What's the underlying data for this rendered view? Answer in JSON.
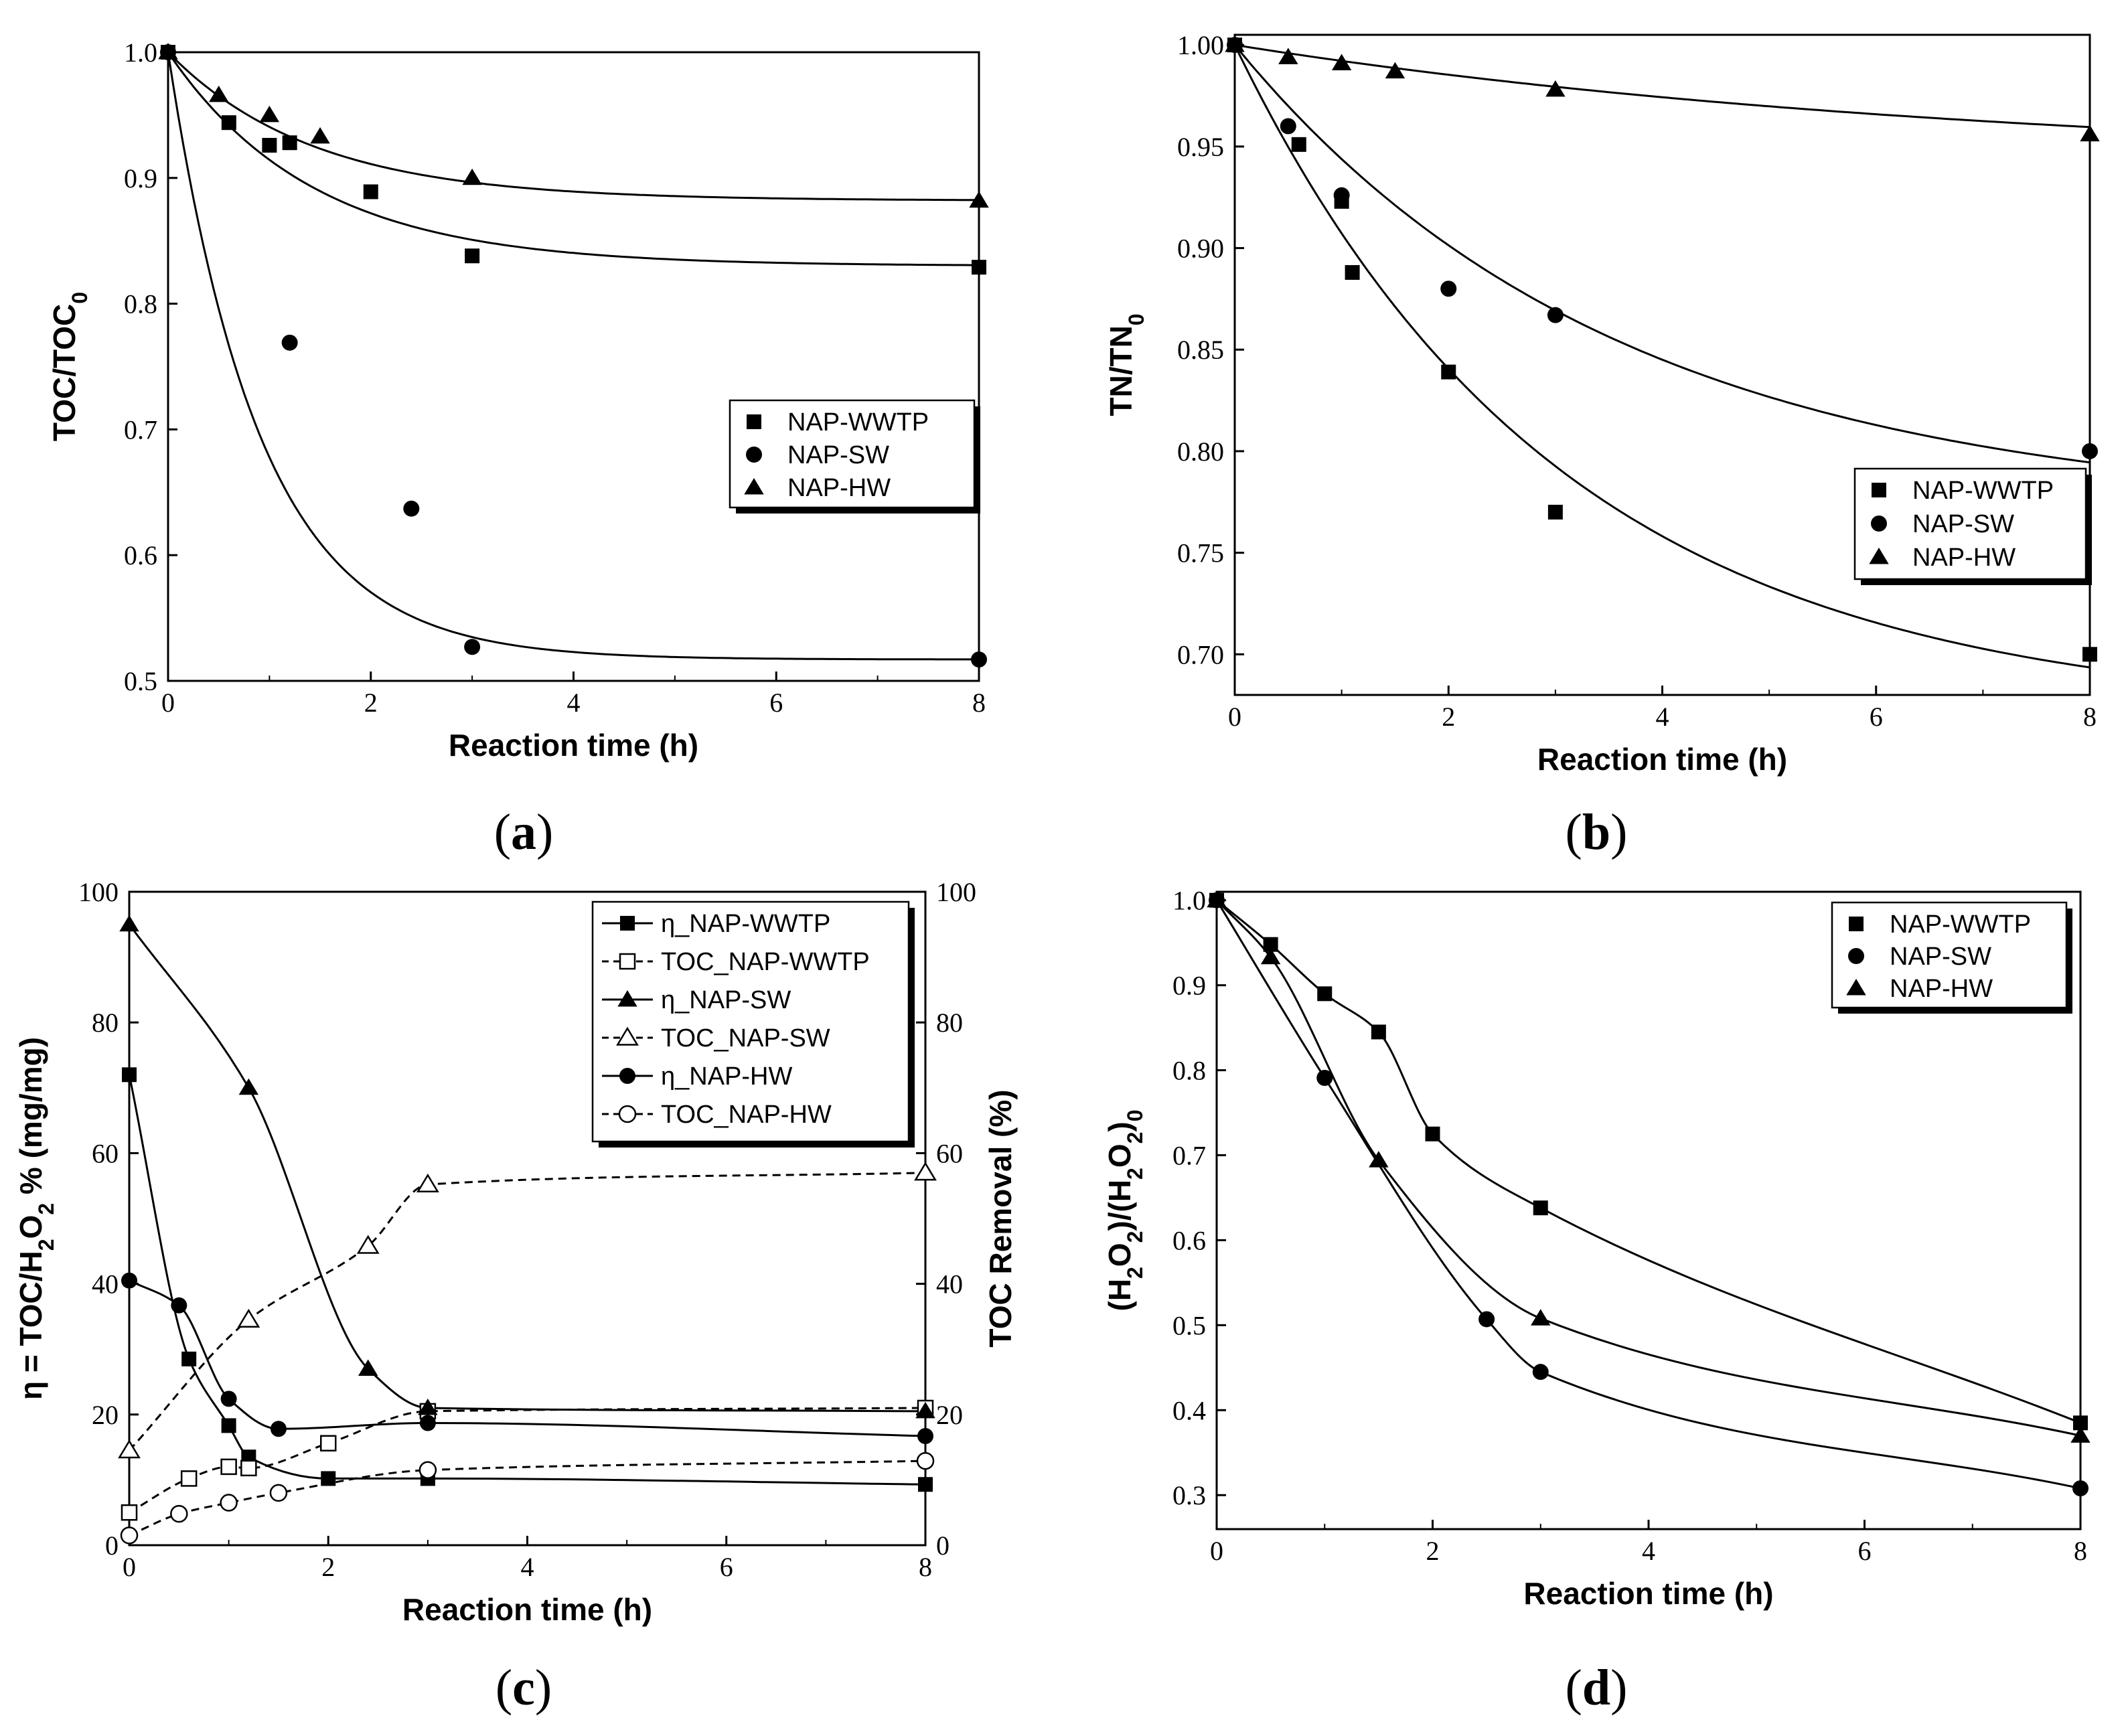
{
  "figure": {
    "panel_labels": [
      {
        "open": "(",
        "letter": "a",
        "close": ")"
      },
      {
        "open": "(",
        "letter": "b",
        "close": ")"
      },
      {
        "open": "(",
        "letter": "c",
        "close": ")"
      },
      {
        "open": "(",
        "letter": "d",
        "close": ")"
      }
    ]
  },
  "chart_data": [
    {
      "type": "scatter",
      "panel": "a",
      "xlabel": "Reaction time (h)",
      "ylabel": "TOC/TOC0",
      "xlim": [
        0,
        8
      ],
      "ylim": [
        0.5,
        1.0
      ],
      "xticks": [
        0,
        2,
        4,
        6,
        8
      ],
      "yticks": [
        0.5,
        0.6,
        0.7,
        0.8,
        0.9,
        1.0
      ],
      "ytick_labels": [
        "0.5",
        "0.6",
        "0.7",
        "0.8",
        "0.9",
        "1.0"
      ],
      "series": [
        {
          "name": "NAP-WWTP",
          "marker": "square",
          "x": [
            0,
            0.6,
            1.0,
            1.2,
            2.0,
            3.0,
            8.0
          ],
          "y": [
            1.0,
            0.944,
            0.926,
            0.928,
            0.889,
            0.838,
            0.829
          ],
          "fit": {
            "a": 0.83,
            "k": 0.7
          }
        },
        {
          "name": "NAP-SW",
          "marker": "circle",
          "x": [
            0,
            1.2,
            2.4,
            3.0,
            8.0
          ],
          "y": [
            1.0,
            0.769,
            0.637,
            0.527,
            0.517
          ],
          "fit": {
            "a": 0.517,
            "k": 1.1
          }
        },
        {
          "name": "NAP-HW",
          "marker": "triangle",
          "x": [
            0,
            0.5,
            1.0,
            1.5,
            3.0,
            8.0
          ],
          "y": [
            1.0,
            0.966,
            0.95,
            0.933,
            0.9,
            0.882
          ],
          "fit": {
            "a": 0.882,
            "k": 0.7
          }
        }
      ],
      "legend": [
        "NAP-WWTP",
        "NAP-SW",
        "NAP-HW"
      ],
      "legend_position": "center-right"
    },
    {
      "type": "scatter",
      "panel": "b",
      "xlabel": "Reaction time (h)",
      "ylabel": "TN/TN0",
      "xlim": [
        0,
        8
      ],
      "ylim": [
        0.68,
        1.005
      ],
      "xticks": [
        0,
        2,
        4,
        6,
        8
      ],
      "yticks": [
        0.7,
        0.75,
        0.8,
        0.85,
        0.9,
        0.95,
        1.0
      ],
      "ytick_labels": [
        "0.70",
        "0.75",
        "0.80",
        "0.85",
        "0.90",
        "0.95",
        "1.00"
      ],
      "series": [
        {
          "name": "NAP-WWTP",
          "marker": "square",
          "x": [
            0,
            0.6,
            1.0,
            1.1,
            2.0,
            3.0,
            8.0
          ],
          "y": [
            1.0,
            0.951,
            0.923,
            0.888,
            0.839,
            0.77,
            0.7
          ],
          "fit": {
            "a": 0.67,
            "k": 0.33
          }
        },
        {
          "name": "NAP-SW",
          "marker": "circle",
          "x": [
            0,
            0.5,
            1.0,
            2.0,
            3.0,
            8.0
          ],
          "y": [
            1.0,
            0.96,
            0.926,
            0.88,
            0.867,
            0.8
          ],
          "fit": {
            "a": 0.77,
            "k": 0.28
          }
        },
        {
          "name": "NAP-HW",
          "marker": "triangle",
          "x": [
            0,
            0.5,
            1.0,
            1.5,
            3.0,
            8.0
          ],
          "y": [
            1.0,
            0.994,
            0.991,
            0.987,
            0.978,
            0.956
          ],
          "fit": {
            "a": 0.94,
            "k": 0.14
          }
        }
      ],
      "legend": [
        "NAP-WWTP",
        "NAP-SW",
        "NAP-HW"
      ],
      "legend_position": "lower-right"
    },
    {
      "type": "scatter",
      "panel": "c",
      "xlabel": "Reaction time (h)",
      "ylabel": "η = TOC/H2O2 % (mg/mg)",
      "y2label": "TOC Removal (%)",
      "xlim": [
        0,
        8
      ],
      "ylim": [
        0,
        100
      ],
      "y2lim": [
        0,
        100
      ],
      "xticks": [
        0,
        2,
        4,
        6,
        8
      ],
      "yticks": [
        0,
        20,
        40,
        60,
        80,
        100
      ],
      "y2ticks": [
        0,
        20,
        40,
        60,
        80,
        100
      ],
      "series": [
        {
          "name": "η_NAP-WWTP",
          "marker": "square",
          "filled": true,
          "dashed": false,
          "x": [
            0,
            0.6,
            1.0,
            1.2,
            2.0,
            3.0,
            8.0
          ],
          "y": [
            72,
            28.5,
            18.3,
            13.5,
            10.2,
            10.2,
            9.3
          ]
        },
        {
          "name": "TOC_NAP-WWTP",
          "marker": "square",
          "filled": false,
          "dashed": true,
          "x": [
            0,
            0.6,
            1.0,
            1.2,
            2.0,
            3.0,
            8.0
          ],
          "y": [
            5,
            10.2,
            12,
            11.8,
            15.6,
            20.5,
            21
          ]
        },
        {
          "name": "η_NAP-SW",
          "marker": "triangle",
          "filled": true,
          "dashed": false,
          "x": [
            0,
            1.2,
            2.4,
            3.0,
            8.0
          ],
          "y": [
            95,
            70,
            27,
            21,
            20.5
          ]
        },
        {
          "name": "TOC_NAP-SW",
          "marker": "triangle",
          "filled": false,
          "dashed": true,
          "x": [
            0,
            1.2,
            2.4,
            3.0,
            8.0
          ],
          "y": [
            14.5,
            34.5,
            45.8,
            55.2,
            57
          ]
        },
        {
          "name": "η_NAP-HW",
          "marker": "circle",
          "filled": true,
          "dashed": false,
          "x": [
            0,
            0.5,
            1.0,
            1.5,
            3.0,
            8.0
          ],
          "y": [
            40.5,
            36.7,
            22.4,
            17.8,
            18.7,
            16.7
          ]
        },
        {
          "name": "TOC_NAP-HW",
          "marker": "circle",
          "filled": false,
          "dashed": true,
          "x": [
            0,
            0.5,
            1.0,
            1.5,
            3.0,
            8.0
          ],
          "y": [
            1.5,
            4.8,
            6.5,
            8,
            11.5,
            12.9
          ]
        }
      ],
      "legend": [
        "η_NAP-WWTP",
        "TOC_NAP-WWTP",
        "η_NAP-SW",
        "TOC_NAP-SW",
        "η_NAP-HW",
        "TOC_NAP-HW"
      ],
      "legend_position": "top-right"
    },
    {
      "type": "scatter",
      "panel": "d",
      "xlabel": "Reaction time (h)",
      "ylabel": "(H2O2)/(H2O2)0",
      "xlim": [
        0,
        8
      ],
      "ylim": [
        0.26,
        1.01
      ],
      "xticks": [
        0,
        2,
        4,
        6,
        8
      ],
      "yticks": [
        0.3,
        0.4,
        0.5,
        0.6,
        0.7,
        0.8,
        0.9,
        1.0
      ],
      "ytick_labels": [
        "0.3",
        "0.4",
        "0.5",
        "0.6",
        "0.7",
        "0.8",
        "0.9",
        "1.0"
      ],
      "series": [
        {
          "name": "NAP-WWTP",
          "marker": "square",
          "x": [
            0,
            0.5,
            1.0,
            1.5,
            2.0,
            3.0,
            8.0
          ],
          "y": [
            1.0,
            0.948,
            0.89,
            0.845,
            0.725,
            0.638,
            0.385
          ]
        },
        {
          "name": "NAP-SW",
          "marker": "circle",
          "x": [
            0,
            1.0,
            2.5,
            3.0,
            8.0
          ],
          "y": [
            1.0,
            0.791,
            0.507,
            0.445,
            0.308
          ]
        },
        {
          "name": "NAP-HW",
          "marker": "triangle",
          "x": [
            0,
            0.5,
            1.5,
            3.0,
            8.0
          ],
          "y": [
            1.0,
            0.933,
            0.694,
            0.508,
            0.37
          ]
        }
      ],
      "legend": [
        "NAP-WWTP",
        "NAP-SW",
        "NAP-HW"
      ],
      "legend_position": "top-right"
    }
  ]
}
